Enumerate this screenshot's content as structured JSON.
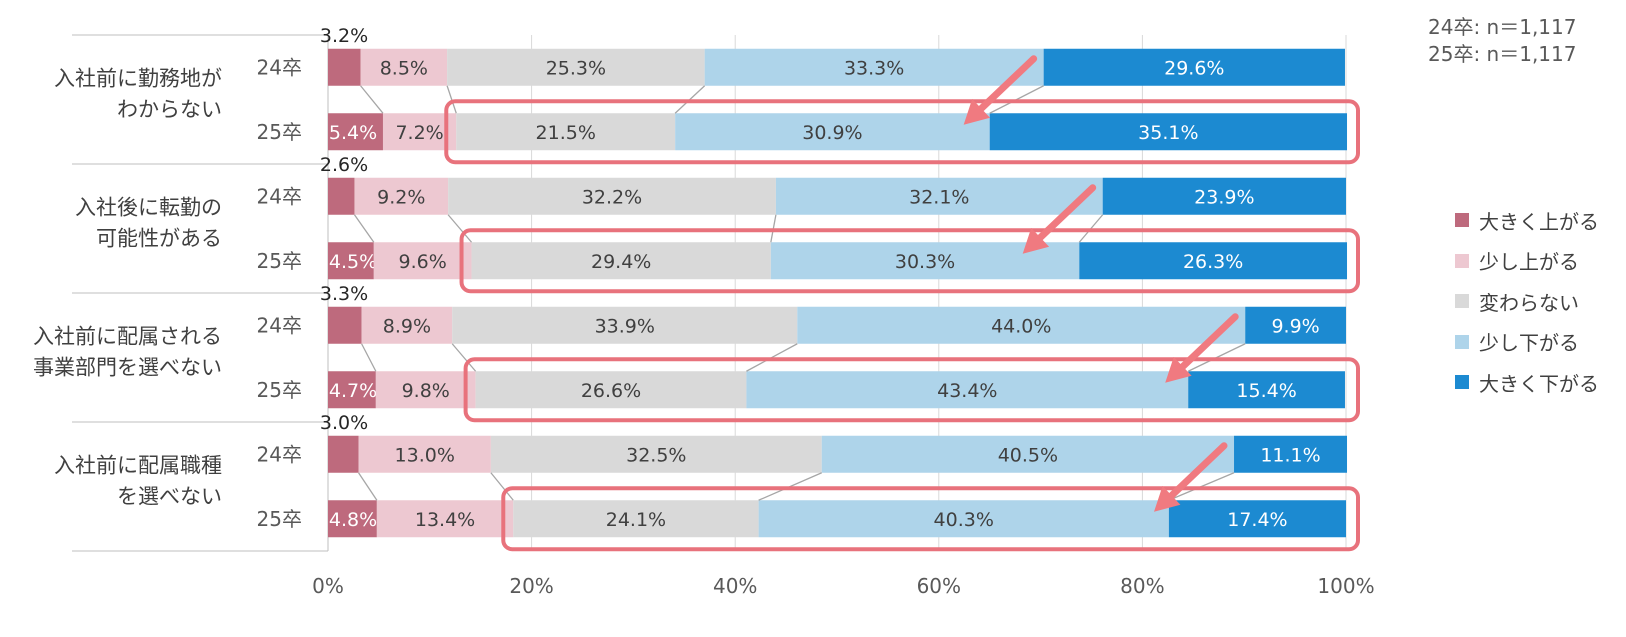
{
  "chart_data": {
    "type": "bar",
    "orientation": "horizontal",
    "stacked": "100%",
    "sample_note": [
      "24卒: n＝1,117",
      "25卒: n＝1,117"
    ],
    "series_names": [
      "大きく上がる",
      "少し上がる",
      "変わらない",
      "少し下がる",
      "大きく下がる"
    ],
    "colors": [
      "#BE6A7D",
      "#EDC8D1",
      "#D9D9D9",
      "#AED4EA",
      "#1C8AD1"
    ],
    "groups": [
      {
        "label": [
          "入社前に勤務地が",
          "わからない"
        ],
        "rows": [
          {
            "label": "24卒",
            "values": [
              3.2,
              8.5,
              25.3,
              33.3,
              29.6
            ],
            "labels": [
              "3.2%",
              "8.5%",
              "25.3%",
              "33.3%",
              "29.6%"
            ]
          },
          {
            "label": "25卒",
            "values": [
              5.4,
              7.2,
              21.5,
              30.9,
              35.1
            ],
            "labels": [
              "5.4%",
              "7.2%",
              "21.5%",
              "30.9%",
              "35.1%"
            ]
          }
        ]
      },
      {
        "label": [
          "入社後に転勤の",
          "可能性がある"
        ],
        "rows": [
          {
            "label": "24卒",
            "values": [
              2.6,
              9.2,
              32.2,
              32.1,
              23.9
            ],
            "labels": [
              "2.6%",
              "9.2%",
              "32.2%",
              "32.1%",
              "23.9%"
            ]
          },
          {
            "label": "25卒",
            "values": [
              4.5,
              9.6,
              29.4,
              30.3,
              26.3
            ],
            "labels": [
              "4.5%",
              "9.6%",
              "29.4%",
              "30.3%",
              "26.3%"
            ]
          }
        ]
      },
      {
        "label": [
          "入社前に配属される",
          "事業部門を選べない"
        ],
        "rows": [
          {
            "label": "24卒",
            "values": [
              3.3,
              8.9,
              33.9,
              44.0,
              9.9
            ],
            "labels": [
              "3.3%",
              "8.9%",
              "33.9%",
              "44.0%",
              "9.9%"
            ]
          },
          {
            "label": "25卒",
            "values": [
              4.7,
              9.8,
              26.6,
              43.4,
              15.4
            ],
            "labels": [
              "4.7%",
              "9.8%",
              "26.6%",
              "43.4%",
              "15.4%"
            ]
          }
        ]
      },
      {
        "label": [
          "入社前に配属職種",
          "を選べない"
        ],
        "rows": [
          {
            "label": "24卒",
            "values": [
              3.0,
              13.0,
              32.5,
              40.5,
              11.1
            ],
            "labels": [
              "3.0%",
              "13.0%",
              "32.5%",
              "40.5%",
              "11.1%"
            ]
          },
          {
            "label": "25卒",
            "values": [
              4.8,
              13.4,
              24.1,
              40.3,
              17.4
            ],
            "labels": [
              "4.8%",
              "13.4%",
              "24.1%",
              "40.3%",
              "17.4%"
            ]
          }
        ]
      }
    ],
    "x_ticks": [
      0,
      20,
      40,
      60,
      80,
      100
    ],
    "x_tick_labels": [
      "0%",
      "20%",
      "40%",
      "60%",
      "80%",
      "100%"
    ],
    "xlim": [
      0,
      100
    ],
    "grid": true,
    "legend_position": "right",
    "annotations": {
      "highlight_rows": "25卒 rows: 少し下がる + 大きく下がる",
      "highlight_color": "#E8727C",
      "arrow_color": "#F07A80"
    }
  }
}
